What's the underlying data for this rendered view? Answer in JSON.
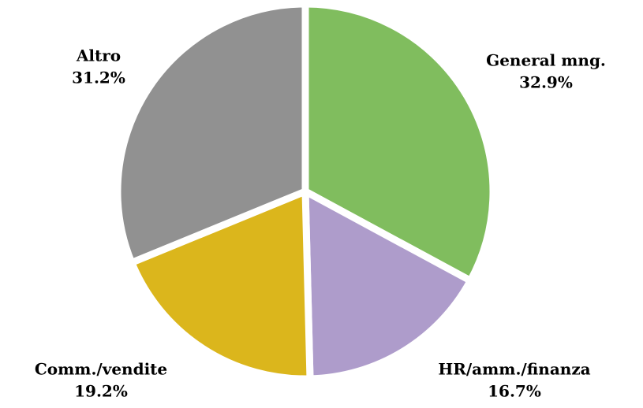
{
  "chart_data": {
    "type": "pie",
    "categories": [
      "General mng.",
      "HR/amm./finanza",
      "Comm./vendite",
      "Altro"
    ],
    "values": [
      32.9,
      16.7,
      19.2,
      31.2
    ],
    "value_labels": [
      "32.9%",
      "16.7%",
      "19.2%",
      "31.2%"
    ],
    "colors": [
      "#80bd5e",
      "#ae9ccb",
      "#dbb61c",
      "#919191"
    ]
  }
}
